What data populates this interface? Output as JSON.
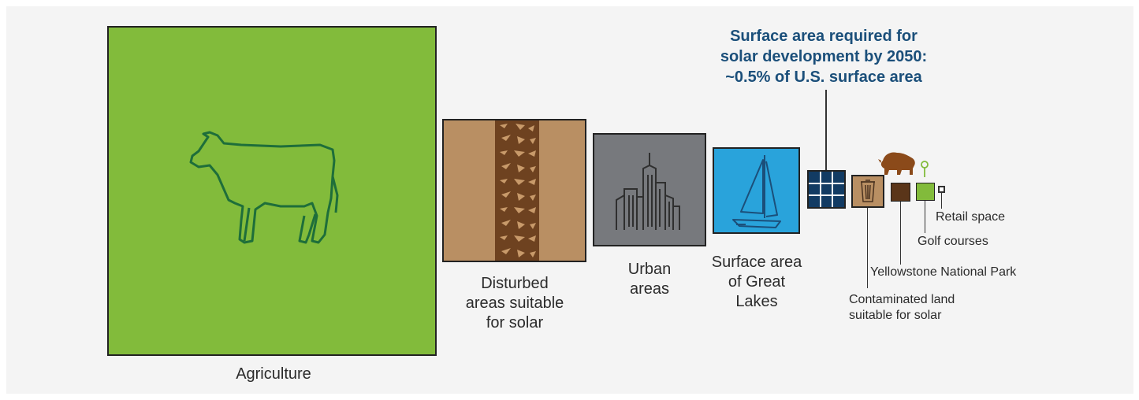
{
  "title": [
    "Surface area required for",
    "solar development by 2050:",
    "~0.5% of U.S. surface area"
  ],
  "items": {
    "agriculture": {
      "label": [
        "Agriculture"
      ],
      "color": "#82bb3b"
    },
    "disturbed": {
      "label": [
        "Disturbed",
        "areas suitable",
        "for solar"
      ],
      "color": "#b98f63",
      "track_color": "#6e4220"
    },
    "urban": {
      "label": [
        "Urban",
        "areas"
      ],
      "color": "#77797d"
    },
    "great_lakes": {
      "label": [
        "Surface area",
        "of Great",
        "Lakes"
      ],
      "color": "#29a3db"
    },
    "solar": {
      "color": "#123b63"
    },
    "contaminated": {
      "label": [
        "Contaminated land",
        "suitable for solar"
      ],
      "color": "#b98f63"
    },
    "yellowstone": {
      "label": [
        "Yellowstone National Park"
      ],
      "color": "#5a3519",
      "icon": "bison-icon"
    },
    "golf": {
      "label": [
        "Golf courses"
      ],
      "color": "#82bb3b",
      "icon": "golf-flag-icon"
    },
    "retail": {
      "label": [
        "Retail space"
      ],
      "color": "#555555"
    }
  }
}
